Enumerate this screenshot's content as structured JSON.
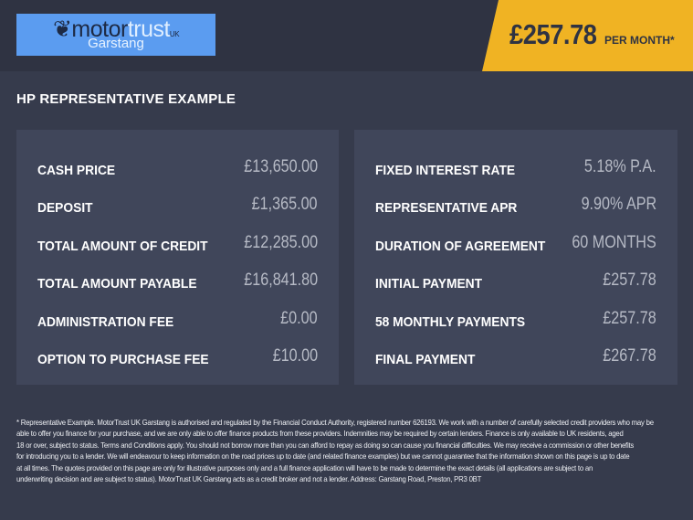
{
  "header": {
    "logo": {
      "brand_dark": "motor",
      "brand_light": "trust",
      "brand_suffix": "UK",
      "location": "Garstang"
    },
    "price": "£257.78",
    "price_unit": "PER MONTH*",
    "accent": "#f0b323"
  },
  "title": "HP REPRESENTATIVE EXAMPLE",
  "left": [
    {
      "label": "CASH PRICE",
      "value": "£13,650.00"
    },
    {
      "label": "DEPOSIT",
      "value": "£1,365.00"
    },
    {
      "label": "TOTAL AMOUNT OF CREDIT",
      "value": "£12,285.00"
    },
    {
      "label": "TOTAL AMOUNT PAYABLE",
      "value": "£16,841.80"
    },
    {
      "label": "ADMINISTRATION FEE",
      "value": "£0.00"
    },
    {
      "label": "OPTION TO PURCHASE FEE",
      "value": "£10.00"
    }
  ],
  "right": [
    {
      "label": "FIXED INTEREST RATE",
      "value": "5.18% P.A."
    },
    {
      "label": "REPRESENTATIVE APR",
      "value": "9.90% APR"
    },
    {
      "label": "DURATION OF AGREEMENT",
      "value": "60 MONTHS"
    },
    {
      "label": "INITIAL PAYMENT",
      "value": "£257.78"
    },
    {
      "label": "58 MONTHLY PAYMENTS",
      "value": "£257.78"
    },
    {
      "label": "FINAL PAYMENT",
      "value": "£267.78"
    }
  ],
  "footer": [
    "* Representative Example. MotorTrust UK Garstang is authorised and regulated by the Financial Conduct Authority, registered number 626193. We work with a number of carefully selected credit providers who may be",
    "able to offer you finance for your purchase, and we are only able to offer finance products from these providers. Indemnities may be required by certain lenders. Finance is only available to UK residents, aged",
    "18 or over, subject to status. Terms and Conditions apply. You should not borrow more than you can afford to repay as doing so can cause you financial difficulties. We may receive a commission or other benefits",
    "for introducing you to a lender. We will endeavour to keep information on the road prices up to date (and related finance examples) but we cannot guarantee that the information shown on this page is up to date",
    "at all times. The quotes provided on this page are only for illustrative purposes only and a full finance application will have to be made to determine the exact details (all applications are subject to an",
    "underwriting decision and are subject to status). MotorTrust UK Garstang acts as a credit broker and not a lender. Address: Garstang Road, Preston, PR3 0BT"
  ]
}
